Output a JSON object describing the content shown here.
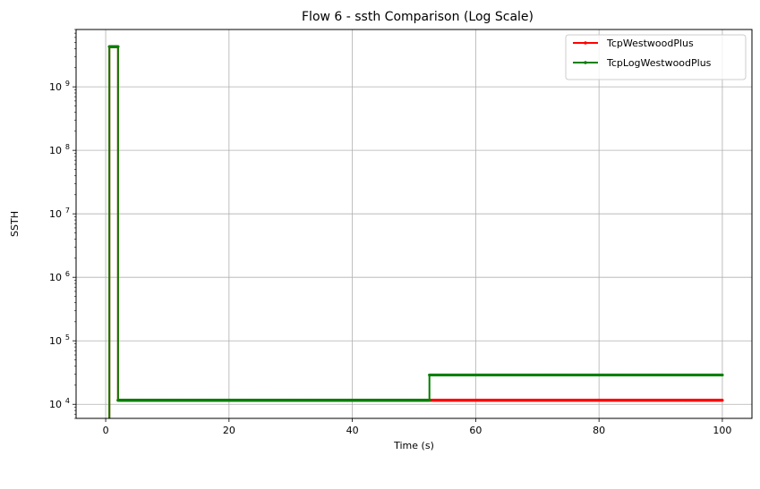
{
  "chart_data": {
    "type": "line",
    "title": "Flow 6 - ssth Comparison (Log Scale)",
    "xlabel": "Time (s)",
    "ylabel": "SSTH",
    "yscale": "log",
    "xlim": [
      -4.8,
      104.8
    ],
    "ylim": [
      6000,
      8000000000
    ],
    "xticks": [
      0,
      20,
      40,
      60,
      80,
      100
    ],
    "xtick_labels": [
      "0",
      "20",
      "40",
      "60",
      "80",
      "100"
    ],
    "yticks": [
      10000,
      100000,
      1000000,
      10000000,
      100000000,
      1000000000
    ],
    "ytick_labels": [
      {
        "base": "10",
        "exp": "4"
      },
      {
        "base": "10",
        "exp": "5"
      },
      {
        "base": "10",
        "exp": "6"
      },
      {
        "base": "10",
        "exp": "7"
      },
      {
        "base": "10",
        "exp": "8"
      },
      {
        "base": "10",
        "exp": "9"
      }
    ],
    "grid": true,
    "legend_position": "top-right",
    "series": [
      {
        "name": "TcpWestwoodPlus",
        "color": "#ff0000",
        "points": [
          [
            0.6,
            1
          ],
          [
            0.6,
            4294967295
          ],
          [
            2.0,
            4294967295
          ],
          [
            2.0,
            11584
          ],
          [
            100,
            11584
          ]
        ]
      },
      {
        "name": "TcpLogWestwoodPlus",
        "color": "#008000",
        "points": [
          [
            0.6,
            1
          ],
          [
            0.6,
            4294967295
          ],
          [
            2.0,
            4294967295
          ],
          [
            2.0,
            11584
          ],
          [
            52.5,
            11584
          ],
          [
            52.5,
            28960
          ],
          [
            100,
            28960
          ]
        ]
      }
    ]
  }
}
